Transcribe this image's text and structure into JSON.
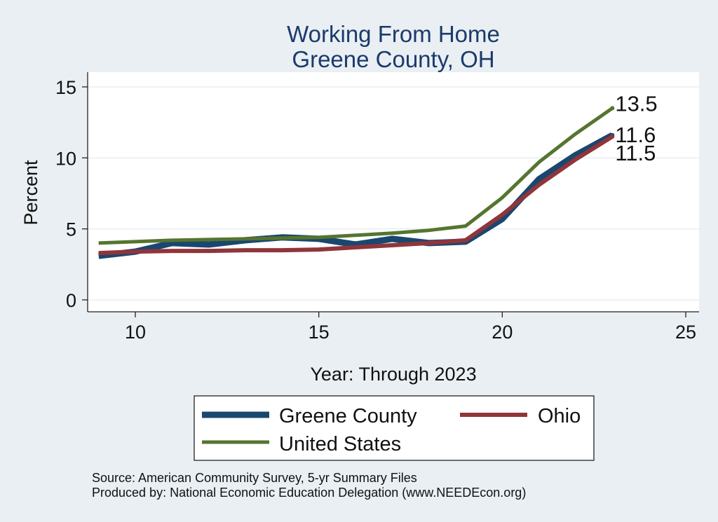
{
  "chart_data": {
    "type": "line",
    "title": [
      "Working From Home",
      "Greene County, OH"
    ],
    "xlabel": "Year: Through 2023",
    "ylabel": "Percent",
    "xlim": [
      9,
      25
    ],
    "ylim": [
      0,
      16
    ],
    "xticks": [
      10,
      15,
      20,
      25
    ],
    "yticks": [
      0,
      5,
      10,
      15
    ],
    "grid": "horizontal",
    "legend_position": "bottom",
    "series": [
      {
        "name": "Greene County",
        "color": "#1a476f",
        "x": [
          9,
          10,
          11,
          12,
          13,
          14,
          15,
          16,
          17,
          18,
          19,
          20,
          21,
          22,
          23
        ],
        "y": [
          3.1,
          3.4,
          4.0,
          3.9,
          4.2,
          4.4,
          4.3,
          3.9,
          4.3,
          4.0,
          4.1,
          5.7,
          8.5,
          10.2,
          11.6
        ],
        "end_label": "11.6"
      },
      {
        "name": "Ohio",
        "color": "#90353b",
        "x": [
          9,
          10,
          11,
          12,
          13,
          14,
          15,
          16,
          17,
          18,
          19,
          20,
          21,
          22,
          23
        ],
        "y": [
          3.3,
          3.4,
          3.45,
          3.45,
          3.5,
          3.5,
          3.55,
          3.7,
          3.85,
          4.0,
          4.2,
          6.0,
          8.1,
          9.9,
          11.5
        ],
        "end_label": "11.5"
      },
      {
        "name": "United States",
        "color": "#55752f",
        "x": [
          9,
          10,
          11,
          12,
          13,
          14,
          15,
          16,
          17,
          18,
          19,
          20,
          21,
          22,
          23
        ],
        "y": [
          4.0,
          4.1,
          4.2,
          4.25,
          4.3,
          4.35,
          4.4,
          4.55,
          4.7,
          4.9,
          5.2,
          7.2,
          9.7,
          11.7,
          13.5
        ],
        "end_label": "13.5"
      }
    ],
    "notes": [
      "Source: American Community Survey, 5-yr Summary Files",
      "Produced by: National Economic Education Delegation (www.NEEDEcon.org)"
    ]
  }
}
